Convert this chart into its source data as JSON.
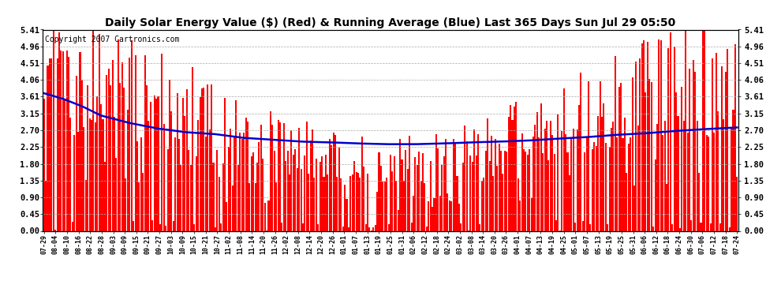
{
  "title": "Daily Solar Energy Value ($) (Red) & Running Average (Blue) Last 365 Days Sun Jul 29 05:50",
  "copyright": "Copyright 2007 Cartronics.com",
  "yticks": [
    0.0,
    0.45,
    0.9,
    1.35,
    1.8,
    2.25,
    2.7,
    3.15,
    3.61,
    4.06,
    4.51,
    4.96,
    5.41
  ],
  "ymax": 5.41,
  "ymin": 0.0,
  "bar_color": "#ff0000",
  "avg_color": "#0000cc",
  "bg_color": "#ffffff",
  "plot_bg_color": "#ffffff",
  "grid_color": "#aaaaaa",
  "title_fontsize": 10,
  "copyright_fontsize": 7,
  "n_bars": 365,
  "x_labels": [
    "07-29",
    "08-04",
    "08-10",
    "08-16",
    "08-22",
    "08-28",
    "09-03",
    "09-09",
    "09-15",
    "09-21",
    "09-27",
    "10-03",
    "10-09",
    "10-15",
    "10-21",
    "10-27",
    "11-02",
    "11-08",
    "11-14",
    "11-20",
    "11-26",
    "12-02",
    "12-08",
    "12-14",
    "12-20",
    "12-26",
    "01-01",
    "01-07",
    "01-13",
    "01-19",
    "01-25",
    "01-31",
    "02-06",
    "02-12",
    "02-18",
    "02-24",
    "03-02",
    "03-08",
    "03-14",
    "03-20",
    "03-26",
    "04-01",
    "04-07",
    "04-13",
    "04-19",
    "04-25",
    "05-01",
    "05-07",
    "05-13",
    "05-19",
    "05-25",
    "05-31",
    "06-06",
    "06-12",
    "06-18",
    "06-24",
    "06-30",
    "07-06",
    "07-12",
    "07-18",
    "07-24"
  ],
  "avg_keypoints": [
    [
      0,
      3.7
    ],
    [
      10,
      3.55
    ],
    [
      20,
      3.35
    ],
    [
      30,
      3.1
    ],
    [
      45,
      2.9
    ],
    [
      60,
      2.75
    ],
    [
      75,
      2.65
    ],
    [
      90,
      2.6
    ],
    [
      105,
      2.5
    ],
    [
      120,
      2.45
    ],
    [
      135,
      2.4
    ],
    [
      150,
      2.38
    ],
    [
      165,
      2.35
    ],
    [
      180,
      2.33
    ],
    [
      195,
      2.33
    ],
    [
      210,
      2.35
    ],
    [
      225,
      2.38
    ],
    [
      240,
      2.4
    ],
    [
      255,
      2.43
    ],
    [
      270,
      2.48
    ],
    [
      285,
      2.52
    ],
    [
      300,
      2.58
    ],
    [
      315,
      2.62
    ],
    [
      330,
      2.68
    ],
    [
      345,
      2.73
    ],
    [
      364,
      2.78
    ]
  ]
}
